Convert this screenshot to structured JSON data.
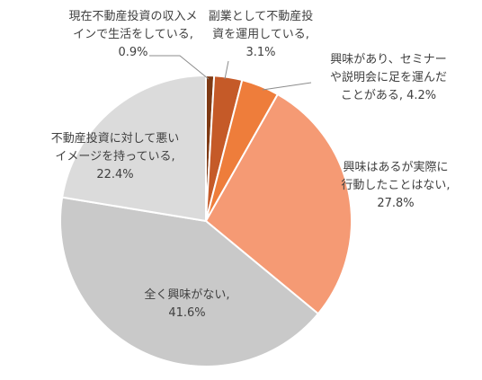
{
  "chart_data": {
    "type": "pie",
    "slices": [
      {
        "label_lines": [
          "現在不動産投資の収入メ",
          "インで生活をしている,",
          "0.9%"
        ],
        "category": "現在不動産投資の収入メインで生活をしている",
        "value": 0.9,
        "color": "#7f3a14"
      },
      {
        "label_lines": [
          "副業として不動産投",
          "資を運用している,",
          "3.1%"
        ],
        "category": "副業として不動産投資を運用している",
        "value": 3.1,
        "color": "#c55a28"
      },
      {
        "label_lines": [
          "興味があり、セミナー",
          "や説明会に足を運んだ",
          "ことがある, 4.2%"
        ],
        "category": "興味があり、セミナーや説明会に足を運んだことがある",
        "value": 4.2,
        "color": "#ee7d3b"
      },
      {
        "label_lines": [
          "興味はあるが実際に",
          "行動したことはない,",
          "27.8%"
        ],
        "category": "興味はあるが実際に行動したことはない",
        "value": 27.8,
        "color": "#f59a74"
      },
      {
        "label_lines": [
          "全く興味がない,",
          "41.6%"
        ],
        "category": "全く興味がない",
        "value": 41.6,
        "color": "#c9c9c9"
      },
      {
        "label_lines": [
          "不動産投資に対して悪い",
          "イメージを持っている,",
          "22.4%"
        ],
        "category": "不動産投資に対して悪いイメージを持っている",
        "value": 22.4,
        "color": "#dbdbdb"
      }
    ],
    "start_angle_deg": 0,
    "direction": "clockwise"
  }
}
